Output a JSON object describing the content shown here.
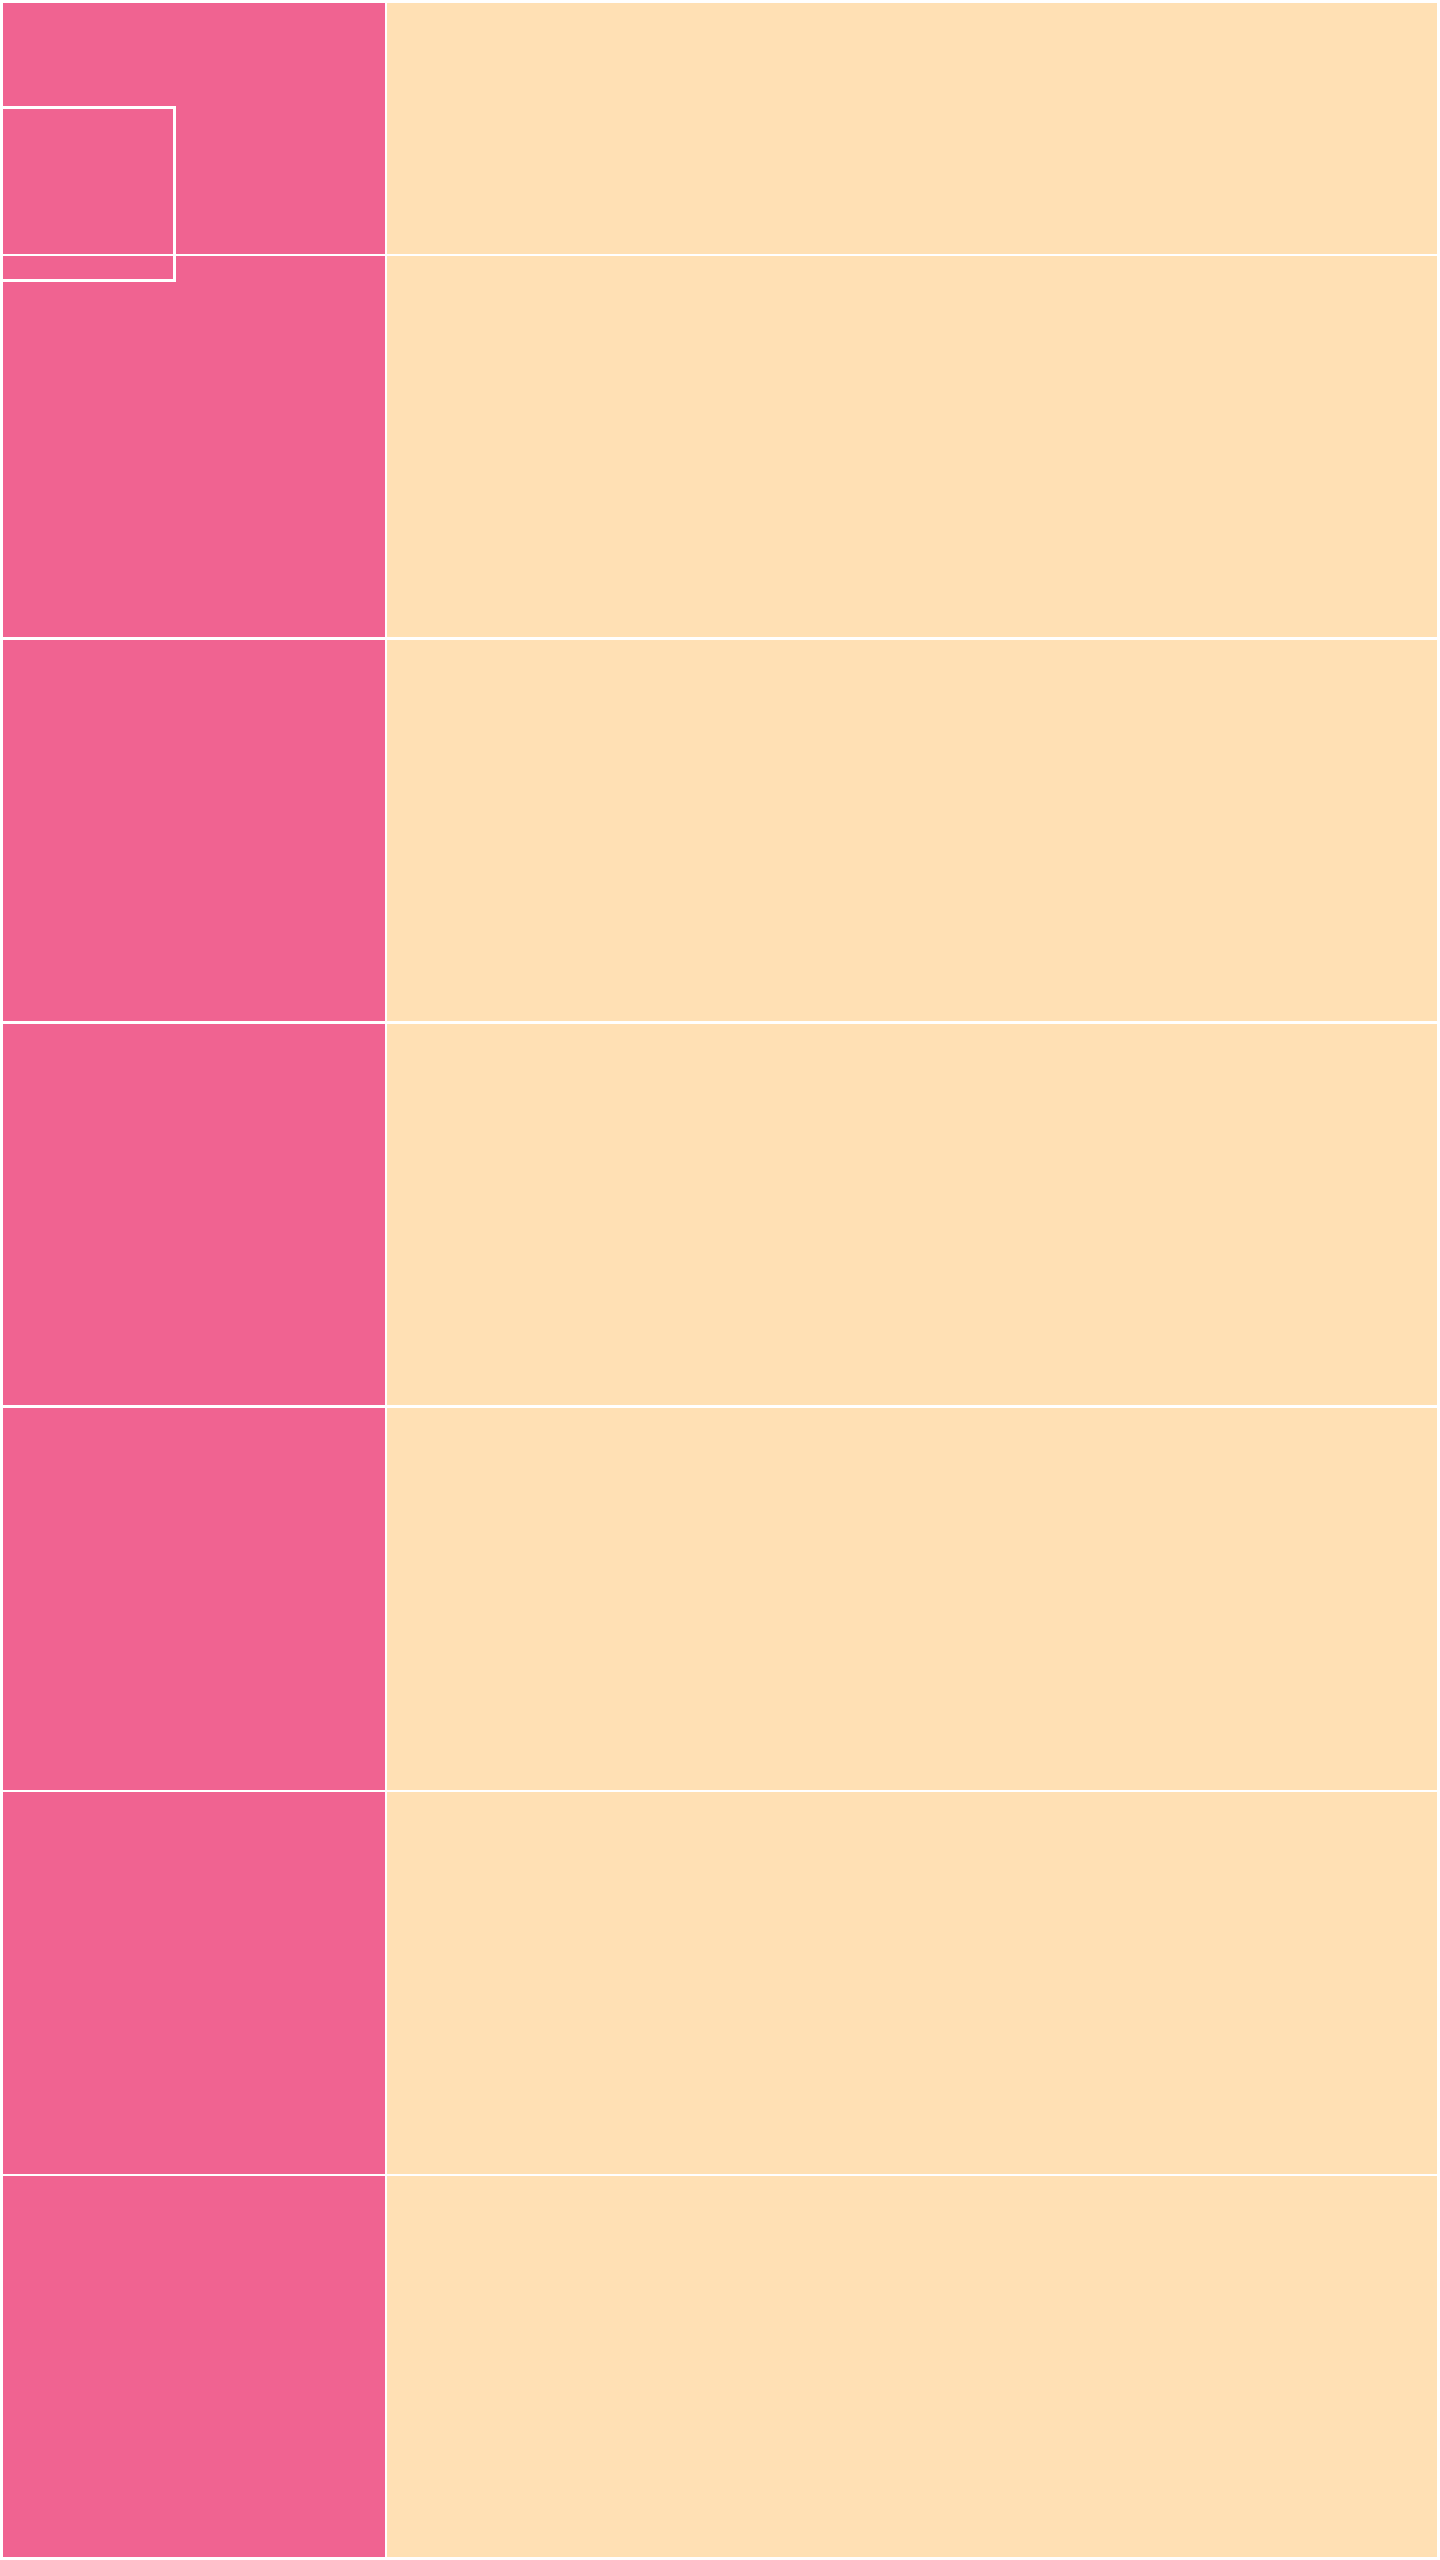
{
  "colors": {
    "left_block": "#f06391",
    "right_block": "#ffe0b4",
    "divider": "#ffffff"
  },
  "grid": {
    "rows": 7,
    "columns": 2
  }
}
